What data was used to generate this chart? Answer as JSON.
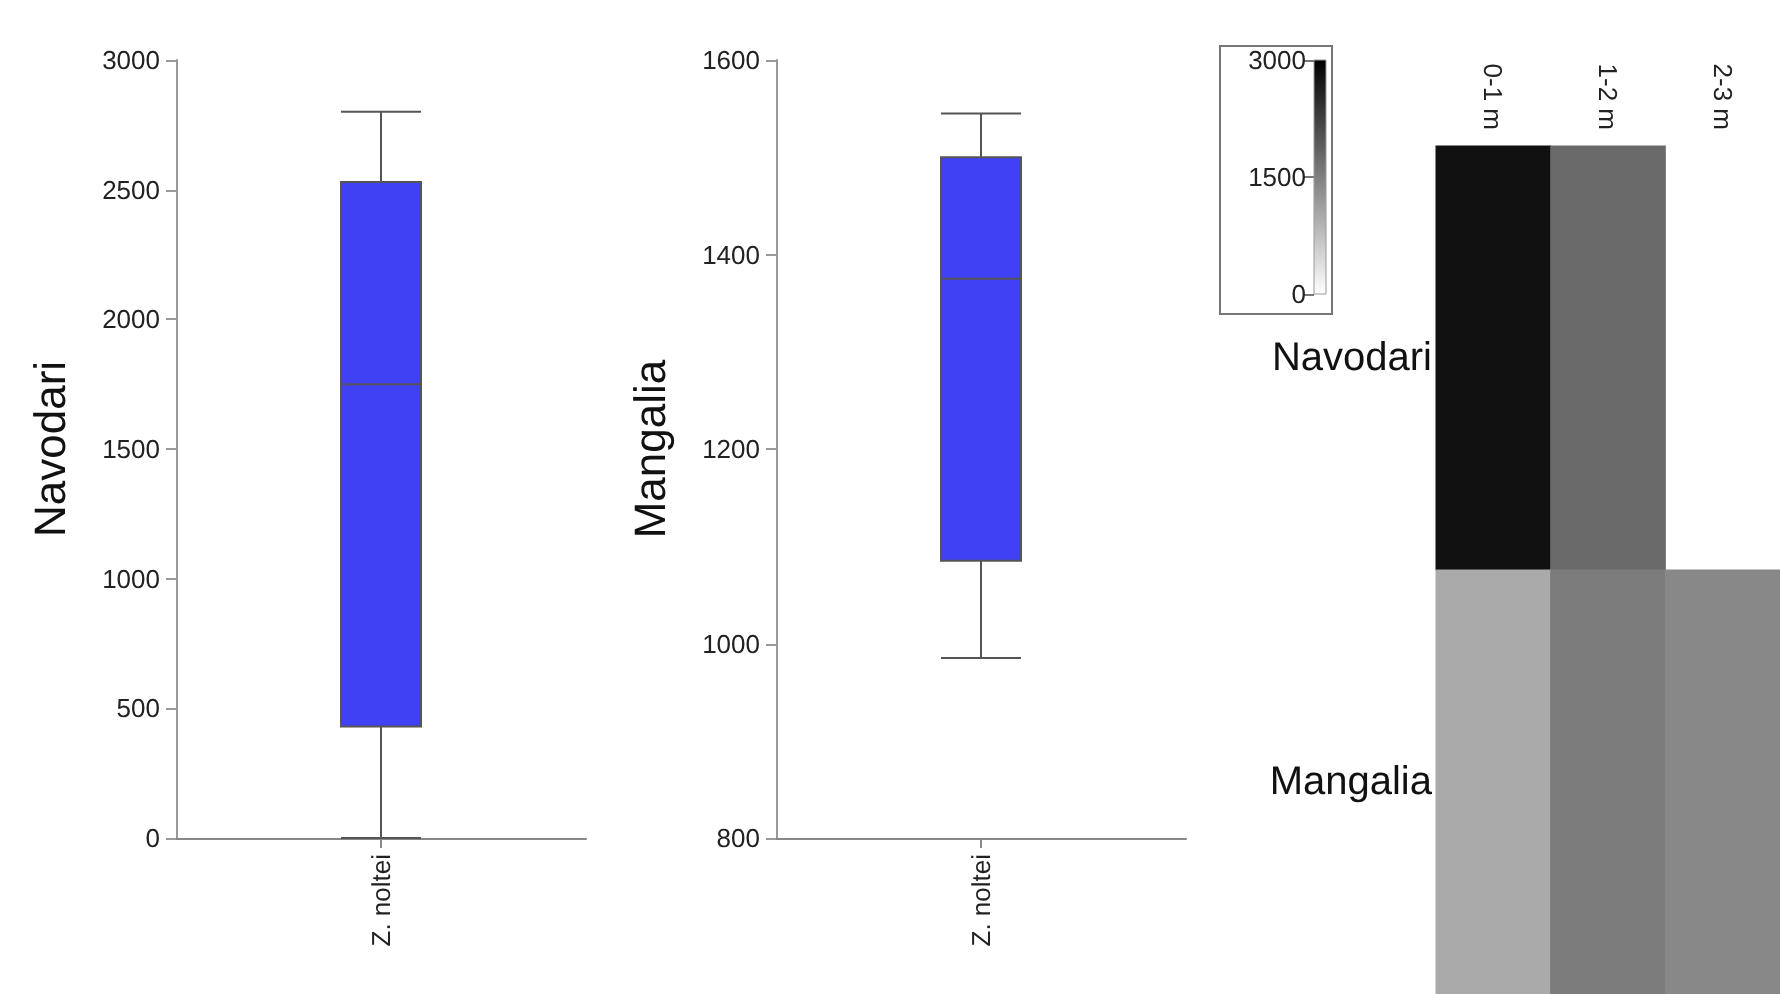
{
  "chart_data": [
    {
      "type": "box",
      "ylabel": "Navodari",
      "categories": [
        "Z. noltei"
      ],
      "ylim": [
        0,
        3000
      ],
      "yticks": [
        0,
        500,
        1000,
        1500,
        2000,
        2500,
        3000
      ],
      "series": [
        {
          "color": "#4040f5",
          "boxes": [
            {
              "low": 0,
              "q1": 430,
              "median": 1750,
              "q3": 2530,
              "high": 2800
            }
          ]
        }
      ]
    },
    {
      "type": "box",
      "ylabel": "Mangalia",
      "categories": [
        "Z. noltei"
      ],
      "ylim": [
        800,
        1600
      ],
      "yticks": [
        800,
        1000,
        1200,
        1400,
        1600
      ],
      "series": [
        {
          "color": "#4040f5",
          "boxes": [
            {
              "low": 985,
              "q1": 1085,
              "median": 1375,
              "q3": 1500,
              "high": 1545
            }
          ]
        }
      ]
    },
    {
      "type": "heatmap",
      "categories": [
        "0-1 m",
        "1-2 m",
        "2-3 m"
      ],
      "y_categories": [
        "Navodari",
        "Mangalia"
      ],
      "cells": [
        [
          2800,
          1750,
          null
        ],
        [
          1000,
          1550,
          1400
        ]
      ],
      "clim": [
        0,
        3000
      ],
      "cticks": [
        0,
        1500,
        3000
      ]
    }
  ]
}
